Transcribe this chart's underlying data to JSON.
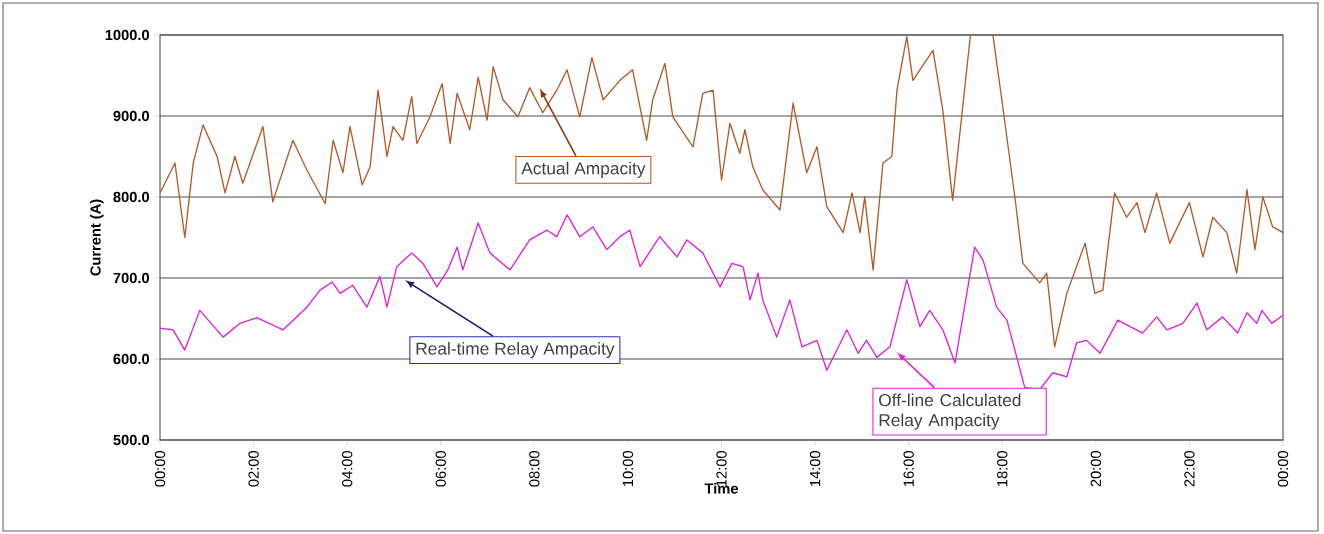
{
  "chart_data": {
    "type": "line",
    "xlabel": "Time",
    "ylabel": "Current (A)",
    "xlim": [
      0,
      24
    ],
    "ylim": [
      500,
      1000
    ],
    "xticks": [
      {
        "value": 0,
        "label": "00:00"
      },
      {
        "value": 2,
        "label": "02:00"
      },
      {
        "value": 4,
        "label": "04:00"
      },
      {
        "value": 6,
        "label": "06:00"
      },
      {
        "value": 8,
        "label": "08:00"
      },
      {
        "value": 10,
        "label": "10:00"
      },
      {
        "value": 12,
        "label": "12:00"
      },
      {
        "value": 14,
        "label": "14:00"
      },
      {
        "value": 16,
        "label": "16:00"
      },
      {
        "value": 18,
        "label": "18:00"
      },
      {
        "value": 20,
        "label": "20:00"
      },
      {
        "value": 22,
        "label": "22:00"
      },
      {
        "value": 24,
        "label": "00:00"
      }
    ],
    "yticks": [
      {
        "value": 500,
        "label": "500.0"
      },
      {
        "value": 600,
        "label": "600.0"
      },
      {
        "value": 700,
        "label": "700.0"
      },
      {
        "value": 800,
        "label": "800.0"
      },
      {
        "value": 900,
        "label": "900.0"
      },
      {
        "value": 1000,
        "label": "1000.0"
      }
    ],
    "grid": "y",
    "series": [
      {
        "color": "#b45a28",
        "x": [
          0,
          0.32,
          0.53,
          0.71,
          0.92,
          1.22,
          1.39,
          1.6,
          1.77,
          2.2,
          2.41,
          2.84,
          3.14,
          3.53,
          3.7,
          3.91,
          4.06,
          4.32,
          4.49,
          4.66,
          4.85,
          4.98,
          5.19,
          5.38,
          5.49,
          5.77,
          6.03,
          6.2,
          6.35,
          6.62,
          6.8,
          6.99,
          7.12,
          7.33,
          7.65,
          7.9,
          8.18,
          8.48,
          8.7,
          8.97,
          9.23,
          9.47,
          9.83,
          10.1,
          10.4,
          10.53,
          10.79,
          10.96,
          11.39,
          11.6,
          11.82,
          12.0,
          12.18,
          12.39,
          12.5,
          12.67,
          12.88,
          13.25,
          13.53,
          13.82,
          14.04,
          14.25,
          14.6,
          14.79,
          14.96,
          15.06,
          15.24,
          15.45,
          15.64,
          15.75,
          15.96,
          16.09,
          16.52,
          16.73,
          16.94,
          17.32,
          17.5,
          17.8,
          18.0,
          18.27,
          18.44,
          18.8,
          18.95,
          19.12,
          19.38,
          19.77,
          19.98,
          20.15,
          20.4,
          20.66,
          20.88,
          21.05,
          21.3,
          21.58,
          22.0,
          22.29,
          22.5,
          22.8,
          23.01,
          23.23,
          23.4,
          23.57,
          23.78,
          24
        ],
        "values": [
          805,
          842,
          750,
          842,
          889,
          850,
          805,
          850,
          817,
          887,
          794,
          870,
          833,
          792,
          870,
          830,
          887,
          815,
          837,
          932,
          850,
          887,
          870,
          924,
          866,
          899,
          940,
          866,
          928,
          883,
          948,
          895,
          961,
          920,
          899,
          935,
          904,
          932,
          957,
          899,
          972,
          920,
          944,
          957,
          870,
          920,
          965,
          899,
          862,
          928,
          932,
          821,
          891,
          854,
          883,
          837,
          809,
          784,
          916,
          830,
          862,
          788,
          756,
          805,
          756,
          800,
          710,
          842,
          850,
          932,
          998,
          944,
          981,
          907,
          796,
          1000,
          null,
          1000,
          916,
          800,
          718,
          694,
          706,
          615,
          681,
          743,
          681,
          685,
          805,
          775,
          793,
          756,
          805,
          743,
          793,
          726,
          775,
          756,
          706,
          809,
          735,
          800,
          763,
          756
        ]
      },
      {
        "color": "#e020e0",
        "x": [
          0,
          0.28,
          0.53,
          0.85,
          1.35,
          1.71,
          2.07,
          2.63,
          3.14,
          3.42,
          3.68,
          3.85,
          4.12,
          4.42,
          4.7,
          4.85,
          5.06,
          5.38,
          5.62,
          5.92,
          6.15,
          6.35,
          6.47,
          6.8,
          7.05,
          7.48,
          7.9,
          8.27,
          8.48,
          8.7,
          8.97,
          9.25,
          9.55,
          9.83,
          10.04,
          10.26,
          10.68,
          11.05,
          11.26,
          11.6,
          11.97,
          12.22,
          12.46,
          12.61,
          12.78,
          12.88,
          13.18,
          13.46,
          13.72,
          14.04,
          14.25,
          14.68,
          14.92,
          15.1,
          15.32,
          15.6,
          15.96,
          16.24,
          16.45,
          16.73,
          16.99,
          17.41,
          17.59,
          17.88,
          18.1,
          18.48,
          18.8,
          19.08,
          19.38,
          19.59,
          19.8,
          20.09,
          20.47,
          21.0,
          21.3,
          21.52,
          21.86,
          22.16,
          22.37,
          22.71,
          23.03,
          23.23,
          23.44,
          23.55,
          23.76,
          24
        ],
        "values": [
          638,
          636,
          611,
          660,
          627,
          644,
          651,
          636,
          664,
          685,
          695,
          681,
          691,
          664,
          702,
          664,
          714,
          731,
          718,
          689,
          710,
          738,
          710,
          768,
          731,
          710,
          747,
          759,
          751,
          778,
          751,
          763,
          735,
          751,
          759,
          714,
          751,
          726,
          747,
          731,
          689,
          718,
          714,
          673,
          706,
          673,
          627,
          673,
          615,
          623,
          586,
          636,
          607,
          623,
          602,
          615,
          698,
          640,
          660,
          636,
          595,
          738,
          722,
          664,
          648,
          565,
          562,
          583,
          578,
          620,
          623,
          607,
          648,
          632,
          652,
          636,
          644,
          669,
          636,
          652,
          632,
          657,
          644,
          660,
          644,
          654
        ]
      }
    ],
    "annotations": [
      "Actual Ampacity",
      "Real-time Relay Ampacity",
      "Off-line Calculated Relay Ampacity"
    ]
  }
}
